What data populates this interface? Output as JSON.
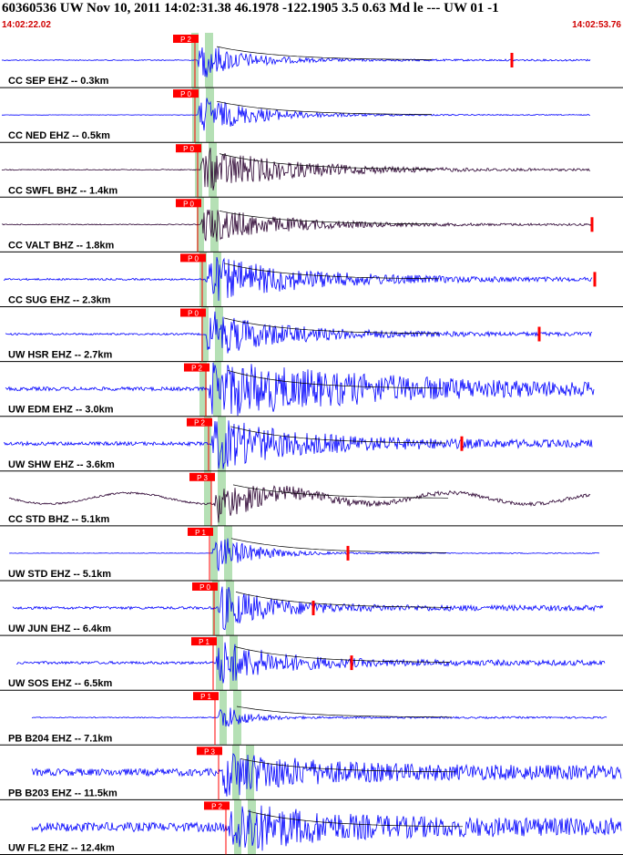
{
  "header": {
    "title": "60360536 UW Nov 10, 2011 14:02:31.38   46.1978 -122.1905  3.5 0.63 Md le --- UW 01   -1",
    "time_start": "14:02:22.02",
    "time_end": "14:02:53.76"
  },
  "colors": {
    "trace_blue": "#0000ff",
    "trace_dark": "#2a0030",
    "pick_red": "#ff0000",
    "window_green": "#b5e0b5",
    "coda_black": "#000000"
  },
  "channels": [
    {
      "label": "CC SEP EHZ -- 0.3km",
      "pick": "P 2",
      "color": "blue"
    },
    {
      "label": "CC NED EHZ -- 0.5km",
      "pick": "P 0",
      "color": "blue"
    },
    {
      "label": "CC SWFL BHZ -- 1.4km",
      "pick": "P 0",
      "color": "dark"
    },
    {
      "label": "CC VALT BHZ -- 1.8km",
      "pick": "P 0",
      "color": "dark"
    },
    {
      "label": "CC SUG EHZ -- 2.3km",
      "pick": "P 0",
      "color": "blue"
    },
    {
      "label": "UW HSR EHZ -- 2.7km",
      "pick": "P 0",
      "color": "blue"
    },
    {
      "label": "UW EDM EHZ -- 3.0km",
      "pick": "P 2",
      "color": "blue"
    },
    {
      "label": "UW SHW EHZ -- 3.6km",
      "pick": "P 2",
      "color": "blue"
    },
    {
      "label": "CC STD BHZ -- 5.1km",
      "pick": "P 3",
      "color": "dark"
    },
    {
      "label": "UW STD EHZ -- 5.1km",
      "pick": "P 1",
      "color": "blue"
    },
    {
      "label": "UW JUN EHZ -- 6.4km",
      "pick": "P 0",
      "color": "blue"
    },
    {
      "label": "UW SOS EHZ -- 6.5km",
      "pick": "P 1",
      "color": "blue"
    },
    {
      "label": "PB B204 EHZ -- 7.1km",
      "pick": "P 1",
      "color": "blue"
    },
    {
      "label": "PB B203 EHZ -- 11.5km",
      "pick": "P 3",
      "color": "blue"
    },
    {
      "label": "UW FL2 EHZ -- 12.4km",
      "pick": "P 2",
      "color": "blue"
    }
  ]
}
